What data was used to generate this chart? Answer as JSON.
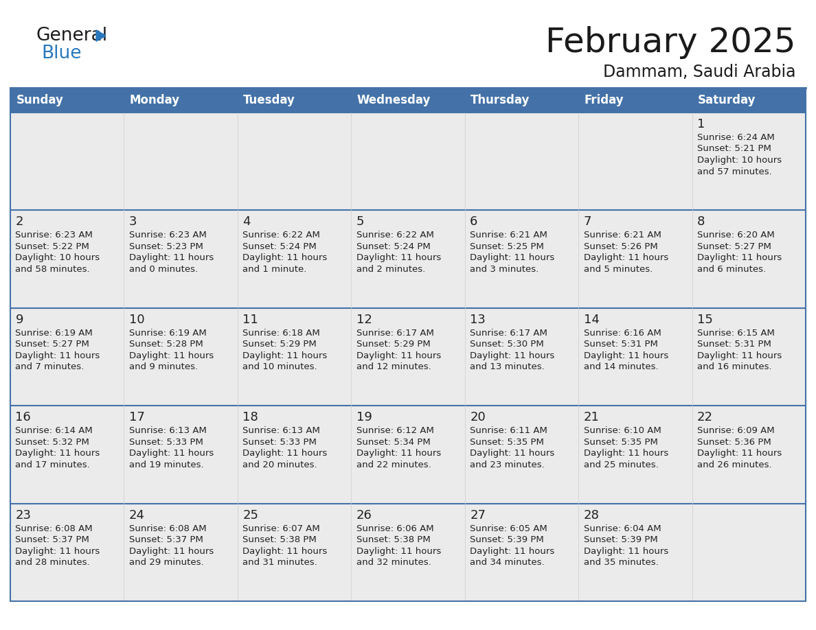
{
  "title": "February 2025",
  "subtitle": "Dammam, Saudi Arabia",
  "days_of_week": [
    "Sunday",
    "Monday",
    "Tuesday",
    "Wednesday",
    "Thursday",
    "Friday",
    "Saturday"
  ],
  "header_bg": "#4472a8",
  "header_text": "#ffffff",
  "cell_bg": "#ebebeb",
  "cell_bg_empty": "#f2f2f2",
  "row_border_color": "#4472a8",
  "outer_border_color": "#4472a8",
  "text_color": "#222222",
  "calendar_data": [
    [
      null,
      null,
      null,
      null,
      null,
      null,
      {
        "day": 1,
        "sunrise": "6:24 AM",
        "sunset": "5:21 PM",
        "daylight_hours": 10,
        "daylight_minutes": 57
      }
    ],
    [
      {
        "day": 2,
        "sunrise": "6:23 AM",
        "sunset": "5:22 PM",
        "daylight_hours": 10,
        "daylight_minutes": 58
      },
      {
        "day": 3,
        "sunrise": "6:23 AM",
        "sunset": "5:23 PM",
        "daylight_hours": 11,
        "daylight_minutes": 0
      },
      {
        "day": 4,
        "sunrise": "6:22 AM",
        "sunset": "5:24 PM",
        "daylight_hours": 11,
        "daylight_minutes": 1
      },
      {
        "day": 5,
        "sunrise": "6:22 AM",
        "sunset": "5:24 PM",
        "daylight_hours": 11,
        "daylight_minutes": 2
      },
      {
        "day": 6,
        "sunrise": "6:21 AM",
        "sunset": "5:25 PM",
        "daylight_hours": 11,
        "daylight_minutes": 3
      },
      {
        "day": 7,
        "sunrise": "6:21 AM",
        "sunset": "5:26 PM",
        "daylight_hours": 11,
        "daylight_minutes": 5
      },
      {
        "day": 8,
        "sunrise": "6:20 AM",
        "sunset": "5:27 PM",
        "daylight_hours": 11,
        "daylight_minutes": 6
      }
    ],
    [
      {
        "day": 9,
        "sunrise": "6:19 AM",
        "sunset": "5:27 PM",
        "daylight_hours": 11,
        "daylight_minutes": 7
      },
      {
        "day": 10,
        "sunrise": "6:19 AM",
        "sunset": "5:28 PM",
        "daylight_hours": 11,
        "daylight_minutes": 9
      },
      {
        "day": 11,
        "sunrise": "6:18 AM",
        "sunset": "5:29 PM",
        "daylight_hours": 11,
        "daylight_minutes": 10
      },
      {
        "day": 12,
        "sunrise": "6:17 AM",
        "sunset": "5:29 PM",
        "daylight_hours": 11,
        "daylight_minutes": 12
      },
      {
        "day": 13,
        "sunrise": "6:17 AM",
        "sunset": "5:30 PM",
        "daylight_hours": 11,
        "daylight_minutes": 13
      },
      {
        "day": 14,
        "sunrise": "6:16 AM",
        "sunset": "5:31 PM",
        "daylight_hours": 11,
        "daylight_minutes": 14
      },
      {
        "day": 15,
        "sunrise": "6:15 AM",
        "sunset": "5:31 PM",
        "daylight_hours": 11,
        "daylight_minutes": 16
      }
    ],
    [
      {
        "day": 16,
        "sunrise": "6:14 AM",
        "sunset": "5:32 PM",
        "daylight_hours": 11,
        "daylight_minutes": 17
      },
      {
        "day": 17,
        "sunrise": "6:13 AM",
        "sunset": "5:33 PM",
        "daylight_hours": 11,
        "daylight_minutes": 19
      },
      {
        "day": 18,
        "sunrise": "6:13 AM",
        "sunset": "5:33 PM",
        "daylight_hours": 11,
        "daylight_minutes": 20
      },
      {
        "day": 19,
        "sunrise": "6:12 AM",
        "sunset": "5:34 PM",
        "daylight_hours": 11,
        "daylight_minutes": 22
      },
      {
        "day": 20,
        "sunrise": "6:11 AM",
        "sunset": "5:35 PM",
        "daylight_hours": 11,
        "daylight_minutes": 23
      },
      {
        "day": 21,
        "sunrise": "6:10 AM",
        "sunset": "5:35 PM",
        "daylight_hours": 11,
        "daylight_minutes": 25
      },
      {
        "day": 22,
        "sunrise": "6:09 AM",
        "sunset": "5:36 PM",
        "daylight_hours": 11,
        "daylight_minutes": 26
      }
    ],
    [
      {
        "day": 23,
        "sunrise": "6:08 AM",
        "sunset": "5:37 PM",
        "daylight_hours": 11,
        "daylight_minutes": 28
      },
      {
        "day": 24,
        "sunrise": "6:08 AM",
        "sunset": "5:37 PM",
        "daylight_hours": 11,
        "daylight_minutes": 29
      },
      {
        "day": 25,
        "sunrise": "6:07 AM",
        "sunset": "5:38 PM",
        "daylight_hours": 11,
        "daylight_minutes": 31
      },
      {
        "day": 26,
        "sunrise": "6:06 AM",
        "sunset": "5:38 PM",
        "daylight_hours": 11,
        "daylight_minutes": 32
      },
      {
        "day": 27,
        "sunrise": "6:05 AM",
        "sunset": "5:39 PM",
        "daylight_hours": 11,
        "daylight_minutes": 34
      },
      {
        "day": 28,
        "sunrise": "6:04 AM",
        "sunset": "5:39 PM",
        "daylight_hours": 11,
        "daylight_minutes": 35
      },
      null
    ]
  ],
  "logo_blue": "#2878be",
  "logo_black": "#1a1a1a",
  "title_fontsize": 36,
  "subtitle_fontsize": 17,
  "header_fontsize": 12,
  "day_num_fontsize": 13,
  "cell_text_fontsize": 9.5
}
